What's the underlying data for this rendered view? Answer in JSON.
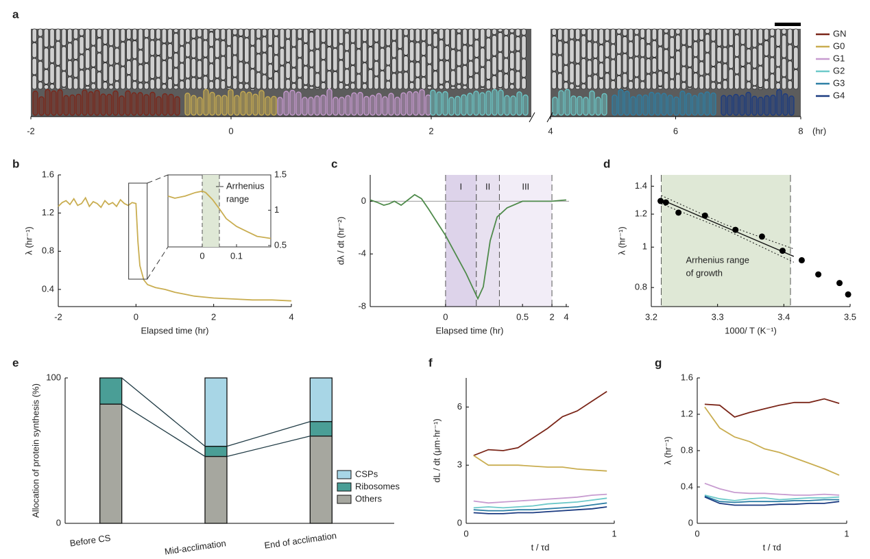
{
  "chart_data": [
    {
      "panel": "a",
      "type": "kymograph",
      "xlabel": "(hr)",
      "segments": [
        {
          "xlim": [
            -2,
            3
          ],
          "xticks": [
            -2,
            0,
            2
          ]
        },
        {
          "xlim": [
            4,
            8
          ],
          "xticks": [
            4,
            6,
            8
          ]
        }
      ],
      "series": [
        {
          "name": "GN",
          "color": "#7a2518"
        },
        {
          "name": "G0",
          "color": "#c9ad50"
        },
        {
          "name": "G1",
          "color": "#c79bd0"
        },
        {
          "name": "G2",
          "color": "#6cc9c9"
        },
        {
          "name": "G3",
          "color": "#2d7fa5"
        },
        {
          "name": "G4",
          "color": "#1a3a80"
        }
      ]
    },
    {
      "panel": "b",
      "type": "line",
      "xlabel": "Elapsed time (hr)",
      "ylabel": "λ (hr⁻¹)",
      "color": "#c9ad50",
      "xlim": [
        -2,
        4
      ],
      "xticks": [
        -2,
        0,
        2,
        4
      ],
      "ylim": [
        0.22,
        1.6
      ],
      "yticks": [
        0.4,
        0.8,
        1.2,
        1.6
      ],
      "x": [
        -2,
        -1.9,
        -1.8,
        -1.7,
        -1.6,
        -1.5,
        -1.4,
        -1.3,
        -1.2,
        -1.1,
        -1,
        -0.9,
        -0.8,
        -0.7,
        -0.6,
        -0.5,
        -0.4,
        -0.3,
        -0.2,
        -0.1,
        0,
        0.05,
        0.1,
        0.2,
        0.3,
        0.5,
        0.75,
        1,
        1.25,
        1.5,
        1.75,
        2,
        2.5,
        3,
        3.5,
        4
      ],
      "values": [
        1.27,
        1.31,
        1.33,
        1.29,
        1.35,
        1.28,
        1.3,
        1.36,
        1.27,
        1.32,
        1.3,
        1.26,
        1.33,
        1.29,
        1.31,
        1.27,
        1.34,
        1.3,
        1.28,
        1.31,
        1.3,
        0.9,
        0.65,
        0.5,
        0.45,
        0.42,
        0.4,
        0.37,
        0.35,
        0.33,
        0.32,
        0.31,
        0.3,
        0.29,
        0.29,
        0.28
      ],
      "inset": {
        "xlim": [
          -0.1,
          0.2
        ],
        "xticks": [
          0,
          0.1
        ],
        "ylim": [
          0.48,
          1.5
        ],
        "yticks": [
          0.5,
          1,
          1.5
        ],
        "span": [
          0,
          0.05
        ],
        "span_color": "#dfe8d6",
        "annotation": [
          "Arrhenius",
          "range"
        ],
        "x": [
          -0.1,
          -0.08,
          -0.05,
          -0.02,
          0,
          0.01,
          0.03,
          0.05,
          0.07,
          0.1,
          0.13,
          0.16,
          0.2
        ],
        "values": [
          1.2,
          1.17,
          1.2,
          1.25,
          1.27,
          1.25,
          1.15,
          1.02,
          0.88,
          0.77,
          0.7,
          0.63,
          0.6
        ]
      }
    },
    {
      "panel": "c",
      "type": "line",
      "xlabel": "Elapsed time (hr)",
      "ylabel": "dλ / dt (hr⁻²)",
      "color": "#4e8a4a",
      "xscale": "piecewise",
      "xlim": [
        -2,
        4.4
      ],
      "xticks": [
        0,
        0.5,
        2,
        4
      ],
      "ylim": [
        -8,
        2
      ],
      "yticks": [
        -8,
        -4,
        0
      ],
      "regimes": [
        {
          "name": "I",
          "range": [
            0,
            0.2
          ],
          "color": "#ddd3ea"
        },
        {
          "name": "II",
          "range": [
            0.2,
            0.35
          ],
          "color": "#e8e1f0"
        },
        {
          "name": "III",
          "range": [
            0.35,
            2
          ],
          "color": "#f2edf7"
        }
      ],
      "x": [
        -2,
        -1.8,
        -1.64,
        -1.5,
        -1.36,
        -1.18,
        -1,
        -0.82,
        -0.64,
        -0.45,
        -0.18,
        0,
        0.134,
        0.21,
        0.245,
        0.29,
        0.335,
        0.4,
        0.5,
        1,
        2,
        3,
        4
      ],
      "values": [
        0.1,
        -0.1,
        -0.3,
        -0.2,
        0,
        -0.3,
        0.1,
        0.5,
        0.2,
        -0.6,
        -1.8,
        -2.6,
        -5.5,
        -7.4,
        -6.5,
        -3,
        -1.2,
        -0.5,
        0,
        0,
        0,
        0.05,
        0.1
      ]
    },
    {
      "panel": "d",
      "type": "scatter",
      "xlabel": "1000/ T (K⁻¹)",
      "ylabel": "λ (hr⁻¹)",
      "log_y": true,
      "color": "#000000",
      "xlim": [
        3.2,
        3.5
      ],
      "xticks": [
        3.2,
        3.3,
        3.4,
        3.5
      ],
      "ylim": [
        0.72,
        1.49
      ],
      "yticks": [
        0.8,
        1,
        1.2,
        1.4
      ],
      "span": [
        3.215,
        3.41
      ],
      "span_color": "#dfe8d6",
      "annotation": [
        "Arrhenius range",
        "of growth"
      ],
      "x": [
        3.214,
        3.222,
        3.241,
        3.281,
        3.327,
        3.367,
        3.398,
        3.427,
        3.452,
        3.484,
        3.497
      ],
      "values": [
        1.29,
        1.28,
        1.21,
        1.19,
        1.1,
        1.06,
        0.98,
        0.93,
        0.86,
        0.82,
        0.77
      ],
      "fit": {
        "x": [
          3.215,
          3.31,
          3.415
        ],
        "values": [
          1.3,
          1.12,
          0.95
        ],
        "ci_upper": [
          1.33,
          1.135,
          0.99
        ],
        "ci_lower": [
          1.27,
          1.105,
          0.92
        ]
      }
    },
    {
      "panel": "e",
      "type": "stacked-bar",
      "ylabel": "Allocation of protein synthesis (%)",
      "categories": [
        "Before CS",
        "Mid-acclimation",
        "End of acclimation"
      ],
      "ylim": [
        0,
        100
      ],
      "yticks": [
        0,
        100
      ],
      "series": [
        {
          "name": "Others",
          "color": "#a6a79f",
          "values": [
            82,
            46,
            60
          ]
        },
        {
          "name": "Ribosomes",
          "color": "#4a9e96",
          "values": [
            18,
            7,
            10
          ]
        },
        {
          "name": "CSPs",
          "color": "#a8d6e6",
          "values": [
            0,
            47,
            30
          ]
        }
      ]
    },
    {
      "panel": "f",
      "type": "line",
      "xlabel": "t / τd",
      "ylabel": "dL / dt (μm·hr⁻¹)",
      "xlim": [
        0,
        1
      ],
      "xticks": [
        0,
        1
      ],
      "ylim": [
        0,
        7.5
      ],
      "yticks": [
        0,
        3,
        6
      ],
      "x": [
        0.05,
        0.15,
        0.25,
        0.35,
        0.45,
        0.55,
        0.65,
        0.75,
        0.85,
        0.95
      ],
      "series": [
        {
          "color": "#7a2518",
          "values": [
            3.5,
            3.8,
            3.75,
            3.9,
            4.4,
            4.9,
            5.5,
            5.8,
            6.3,
            6.8
          ]
        },
        {
          "color": "#c9ad50",
          "values": [
            3.5,
            3.0,
            3.0,
            3.0,
            2.95,
            2.9,
            2.9,
            2.8,
            2.75,
            2.7
          ]
        },
        {
          "color": "#c79bd0",
          "values": [
            1.15,
            1.05,
            1.1,
            1.15,
            1.2,
            1.25,
            1.3,
            1.35,
            1.45,
            1.5
          ]
        },
        {
          "color": "#6cc9c9",
          "values": [
            0.8,
            0.85,
            0.8,
            0.85,
            0.9,
            1.0,
            1.05,
            1.1,
            1.2,
            1.3
          ]
        },
        {
          "color": "#2d7fa5",
          "values": [
            0.7,
            0.65,
            0.65,
            0.7,
            0.7,
            0.75,
            0.8,
            0.85,
            0.95,
            1.05
          ]
        },
        {
          "color": "#1a3a80",
          "values": [
            0.55,
            0.5,
            0.5,
            0.55,
            0.55,
            0.6,
            0.65,
            0.7,
            0.75,
            0.85
          ]
        }
      ]
    },
    {
      "panel": "g",
      "type": "line",
      "xlabel": "t / τd",
      "ylabel": "λ (hr⁻¹)",
      "xlim": [
        0,
        1
      ],
      "xticks": [
        0,
        1
      ],
      "ylim": [
        0,
        1.6
      ],
      "yticks": [
        0,
        0.4,
        0.8,
        1.2,
        1.6
      ],
      "x": [
        0.05,
        0.15,
        0.25,
        0.35,
        0.45,
        0.55,
        0.65,
        0.75,
        0.85,
        0.95
      ],
      "series": [
        {
          "color": "#7a2518",
          "values": [
            1.31,
            1.3,
            1.17,
            1.22,
            1.26,
            1.3,
            1.33,
            1.33,
            1.37,
            1.32
          ]
        },
        {
          "color": "#c9ad50",
          "values": [
            1.28,
            1.05,
            0.95,
            0.9,
            0.82,
            0.78,
            0.72,
            0.66,
            0.6,
            0.53
          ]
        },
        {
          "color": "#c79bd0",
          "values": [
            0.44,
            0.38,
            0.34,
            0.33,
            0.33,
            0.32,
            0.31,
            0.31,
            0.32,
            0.31
          ]
        },
        {
          "color": "#6cc9c9",
          "values": [
            0.31,
            0.27,
            0.25,
            0.27,
            0.28,
            0.26,
            0.27,
            0.28,
            0.28,
            0.29
          ]
        },
        {
          "color": "#2d7fa5",
          "values": [
            0.3,
            0.24,
            0.23,
            0.24,
            0.24,
            0.24,
            0.25,
            0.25,
            0.26,
            0.26
          ]
        },
        {
          "color": "#1a3a80",
          "values": [
            0.29,
            0.22,
            0.2,
            0.2,
            0.2,
            0.21,
            0.21,
            0.22,
            0.22,
            0.24
          ]
        }
      ]
    }
  ]
}
